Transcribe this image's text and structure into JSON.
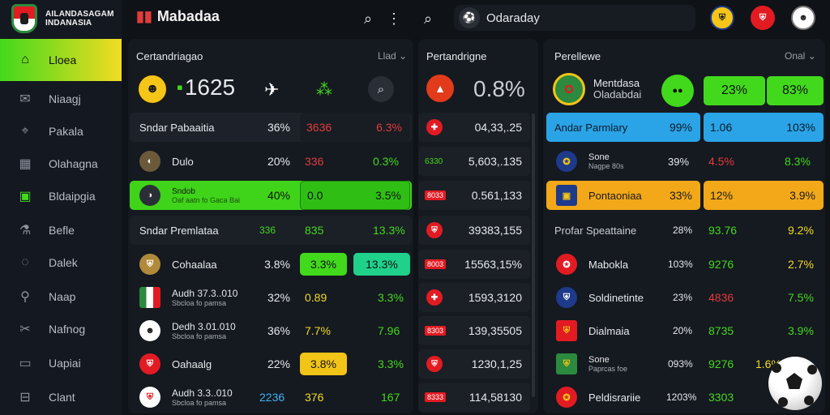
{
  "logo": {
    "line1": "AILANDASAGAM",
    "line2": "INDANASIA"
  },
  "topbar": {
    "brand": "Mabadaa",
    "search_value": "Odaraday"
  },
  "sidebar": {
    "items": [
      {
        "label": "Lloea",
        "icon": "home-icon"
      },
      {
        "label": "Niaagj",
        "icon": "mail-icon"
      },
      {
        "label": "Pakala",
        "icon": "tag-icon"
      },
      {
        "label": "Olahagna",
        "icon": "calendar-icon"
      },
      {
        "label": "Bldaipgia",
        "icon": "document-icon"
      },
      {
        "label": "Befle",
        "icon": "flask-icon"
      },
      {
        "label": "Dalek",
        "icon": "chat-icon"
      },
      {
        "label": "Naap",
        "icon": "pin-icon"
      },
      {
        "label": "Nafnog",
        "icon": "tools-icon"
      },
      {
        "label": "Uapiai",
        "icon": "message-icon"
      },
      {
        "label": "Clant",
        "icon": "card-icon"
      }
    ]
  },
  "panel1": {
    "title": "Certandriagao",
    "filter": "Llad",
    "header_value": "1625",
    "rows": [
      {
        "name": "Sndar Pabaaitia",
        "sub": "",
        "v1": "36%",
        "v2": "3636",
        "v3": "6.3%"
      },
      {
        "name": "Dulo",
        "sub": "",
        "v1": "20%",
        "v2": "336",
        "v3": "0.3%"
      },
      {
        "name": "Sndob",
        "sub": "Oaf aatn fo Gaca Bai",
        "v1": "40%",
        "v2": "0.0",
        "v3": "3.5%"
      },
      {
        "name": "Sndar Premlataa",
        "sub": "",
        "v1": "336",
        "v2": "835",
        "v3": "13.3%"
      },
      {
        "name": "Cohaalaa",
        "sub": "",
        "v1": "3.8%",
        "v2": "3.3%",
        "v3": "13.3%"
      },
      {
        "name": "Audh 37.3..010",
        "sub": "Sbcloa fo pamsa",
        "v1": "32%",
        "v2": "0.89",
        "v3": "3.3%"
      },
      {
        "name": "Dedh 3.01.010",
        "sub": "Sbcloa fo pamsa",
        "v1": "36%",
        "v2": "7.7%",
        "v3": "7.96"
      },
      {
        "name": "Oahaalg",
        "sub": "",
        "v1": "22%",
        "v2": "3.8%",
        "v3": "3.3%"
      },
      {
        "name": "Audh 3.3..010",
        "sub": "Sbcloa fo pamsa",
        "v1": "2236",
        "v2": "376",
        "v3": "167"
      }
    ]
  },
  "panel2": {
    "title": "Pertandrigne",
    "header_value": "0.8%",
    "rows": [
      {
        "tag": "",
        "value": "04,33,.25"
      },
      {
        "tag": "6330",
        "value": "5,603,.135"
      },
      {
        "tag": "8033",
        "value": "0.561,133"
      },
      {
        "tag": "",
        "value": "39383,155"
      },
      {
        "tag": "8003",
        "value": "15563,15%"
      },
      {
        "tag": "",
        "value": "1593,3120"
      },
      {
        "tag": "8303",
        "value": "139,35505"
      },
      {
        "tag": "",
        "value": "1230,1,25"
      },
      {
        "tag": "8333",
        "value": "114,58130"
      }
    ]
  },
  "panel3": {
    "title": "Perellewe",
    "filter": "Onal",
    "header": {
      "name": "Mentdasa",
      "sub": "Oladabdai",
      "v1": "23%",
      "v2": "83%"
    },
    "rows": [
      {
        "name": "Andar Parmlary",
        "sub": "",
        "v1": "99%",
        "v2": "1.06",
        "v3": "103%"
      },
      {
        "name": "Sone",
        "sub": "Nagpe 80s",
        "v1": "39%",
        "v2": "4.5%",
        "v3": "8.3%"
      },
      {
        "name": "Pontaoniaa",
        "sub": "",
        "v1": "33%",
        "v2": "12%",
        "v3": "3.9%"
      },
      {
        "name": "Profar Speattaine",
        "sub": "",
        "v1": "28%",
        "v2": "93.76",
        "v3": "9.2%"
      },
      {
        "name": "Mabokla",
        "sub": "",
        "v1": "103%",
        "v2": "9276",
        "v3": "2.7%"
      },
      {
        "name": "Soldinetinte",
        "sub": "",
        "v1": "23%",
        "v2": "4836",
        "v3": "7.5%"
      },
      {
        "name": "Dialmaia",
        "sub": "",
        "v1": "20%",
        "v2": "8735",
        "v3": "3.9%"
      },
      {
        "name": "Sone",
        "sub": "Paprcas foe",
        "v1": "093%",
        "v2": "9276",
        "v3": "1.6%"
      },
      {
        "name": "Peldisrariie",
        "sub": "",
        "v1": "1203%",
        "v2": "3303",
        "v3": ""
      }
    ]
  }
}
